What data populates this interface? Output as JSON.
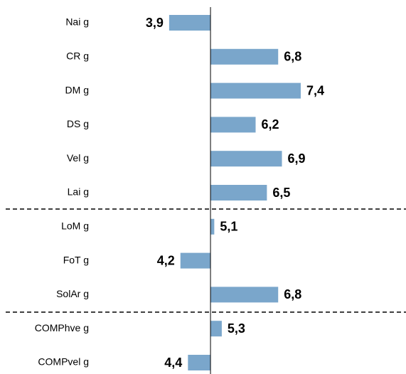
{
  "chart_data": {
    "type": "bar",
    "orientation": "horizontal",
    "categories": [
      "Nai g",
      "CR g",
      "DM g",
      "DS g",
      "Vel g",
      "Lai g",
      "LoM g",
      "FoT g",
      "SolAr g",
      "COMPhve g",
      "COMPvel g"
    ],
    "values": [
      3.9,
      6.8,
      7.4,
      6.2,
      6.9,
      6.5,
      5.1,
      4.2,
      6.8,
      5.3,
      4.4
    ],
    "value_labels": [
      "3,9",
      "6,8",
      "7,4",
      "6,2",
      "6,9",
      "6,5",
      "5,1",
      "4,2",
      "6,8",
      "5,3",
      "4,4"
    ],
    "color": "#7aa6cb",
    "baseline": 5,
    "xlim": [
      2.2,
      10.2
    ]
  }
}
